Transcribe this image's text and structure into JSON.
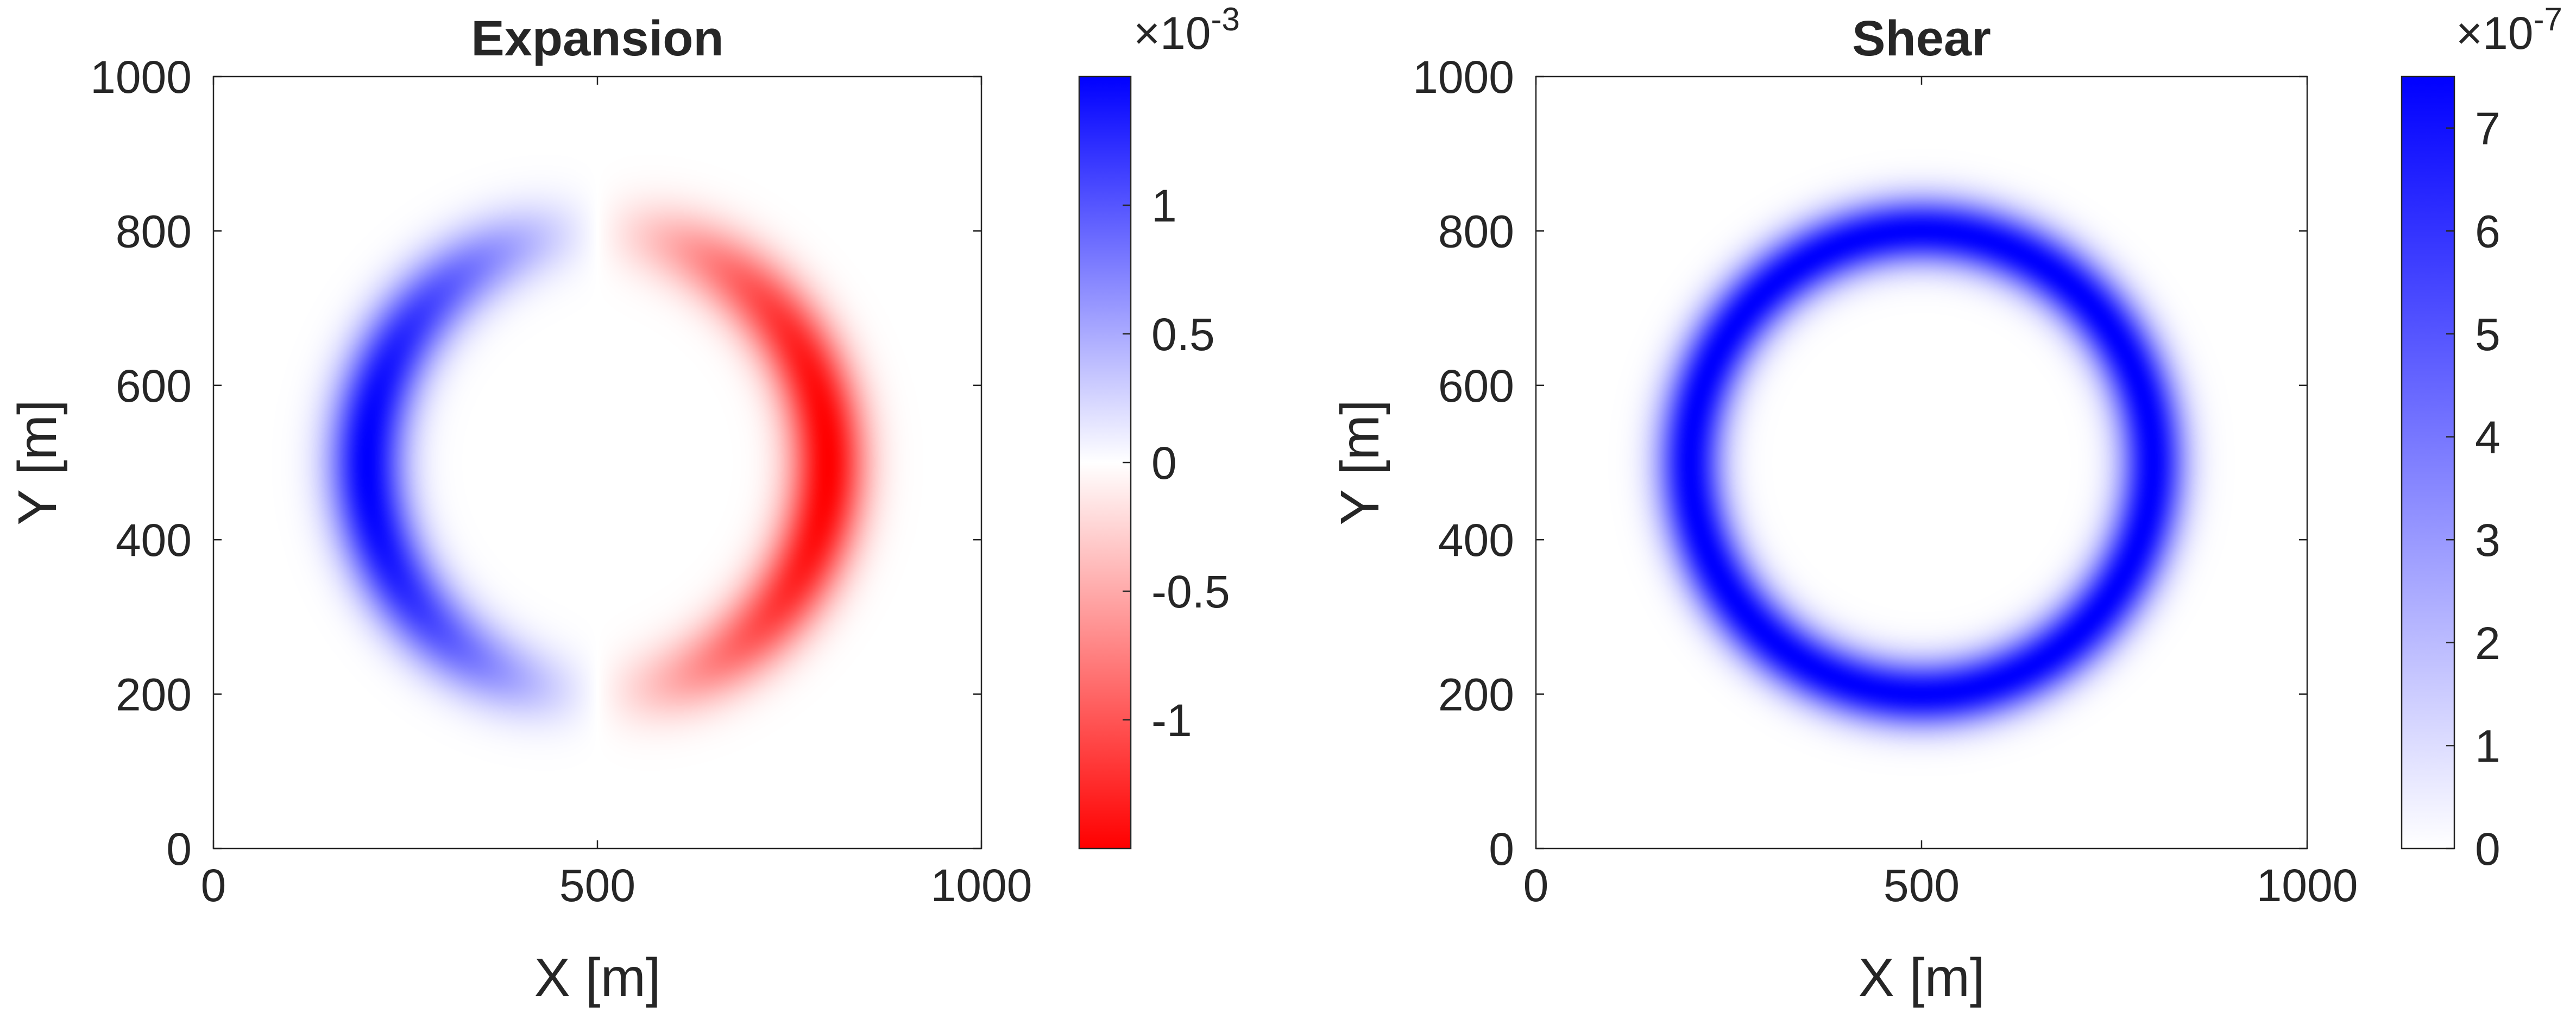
{
  "chart_data": [
    {
      "type": "heatmap",
      "title": "Expansion",
      "xlabel": "X [m]",
      "ylabel": "Y [m]",
      "xlim": [
        0,
        1000
      ],
      "ylim": [
        0,
        1000
      ],
      "xticks": [
        "0",
        "500",
        "1000"
      ],
      "yticks": [
        "0",
        "200",
        "400",
        "600",
        "800",
        "1000"
      ],
      "field": {
        "pattern": "ring",
        "center": [
          500,
          500
        ],
        "radius": 300,
        "width": 35,
        "signed_by_x": true,
        "color_negative_x": "#0000ff",
        "color_positive_x": "#ff0000"
      },
      "colorbar": {
        "exponent_label": "×10",
        "exponent": "-3",
        "min": -1.5,
        "max": 1.5,
        "scale_factor": 0.001,
        "ticks": [
          {
            "value": 1,
            "label": "1"
          },
          {
            "value": 0.5,
            "label": "0.5"
          },
          {
            "value": 0,
            "label": "0"
          },
          {
            "value": -0.5,
            "label": "-0.5"
          },
          {
            "value": -1,
            "label": "-1"
          }
        ],
        "colormap": [
          "#ff0000",
          "#ffffff",
          "#0000ff"
        ]
      }
    },
    {
      "type": "heatmap",
      "title": "Shear",
      "xlabel": "X [m]",
      "ylabel": "Y [m]",
      "xlim": [
        0,
        1000
      ],
      "ylim": [
        0,
        1000
      ],
      "xticks": [
        "0",
        "500",
        "1000"
      ],
      "yticks": [
        "0",
        "200",
        "400",
        "600",
        "800",
        "1000"
      ],
      "field": {
        "pattern": "ring",
        "center": [
          500,
          500
        ],
        "radius": 300,
        "width": 30,
        "signed_by_x": false,
        "color": "#0000ff"
      },
      "colorbar": {
        "exponent_label": "×10",
        "exponent": "-7",
        "min": 0,
        "max": 7.5,
        "scale_factor": 1e-07,
        "ticks": [
          {
            "value": 7,
            "label": "7"
          },
          {
            "value": 6,
            "label": "6"
          },
          {
            "value": 5,
            "label": "5"
          },
          {
            "value": 4,
            "label": "4"
          },
          {
            "value": 3,
            "label": "3"
          },
          {
            "value": 2,
            "label": "2"
          },
          {
            "value": 1,
            "label": "1"
          },
          {
            "value": 0,
            "label": "0"
          }
        ],
        "colormap": [
          "#ffffff",
          "#0000ff"
        ]
      }
    }
  ]
}
